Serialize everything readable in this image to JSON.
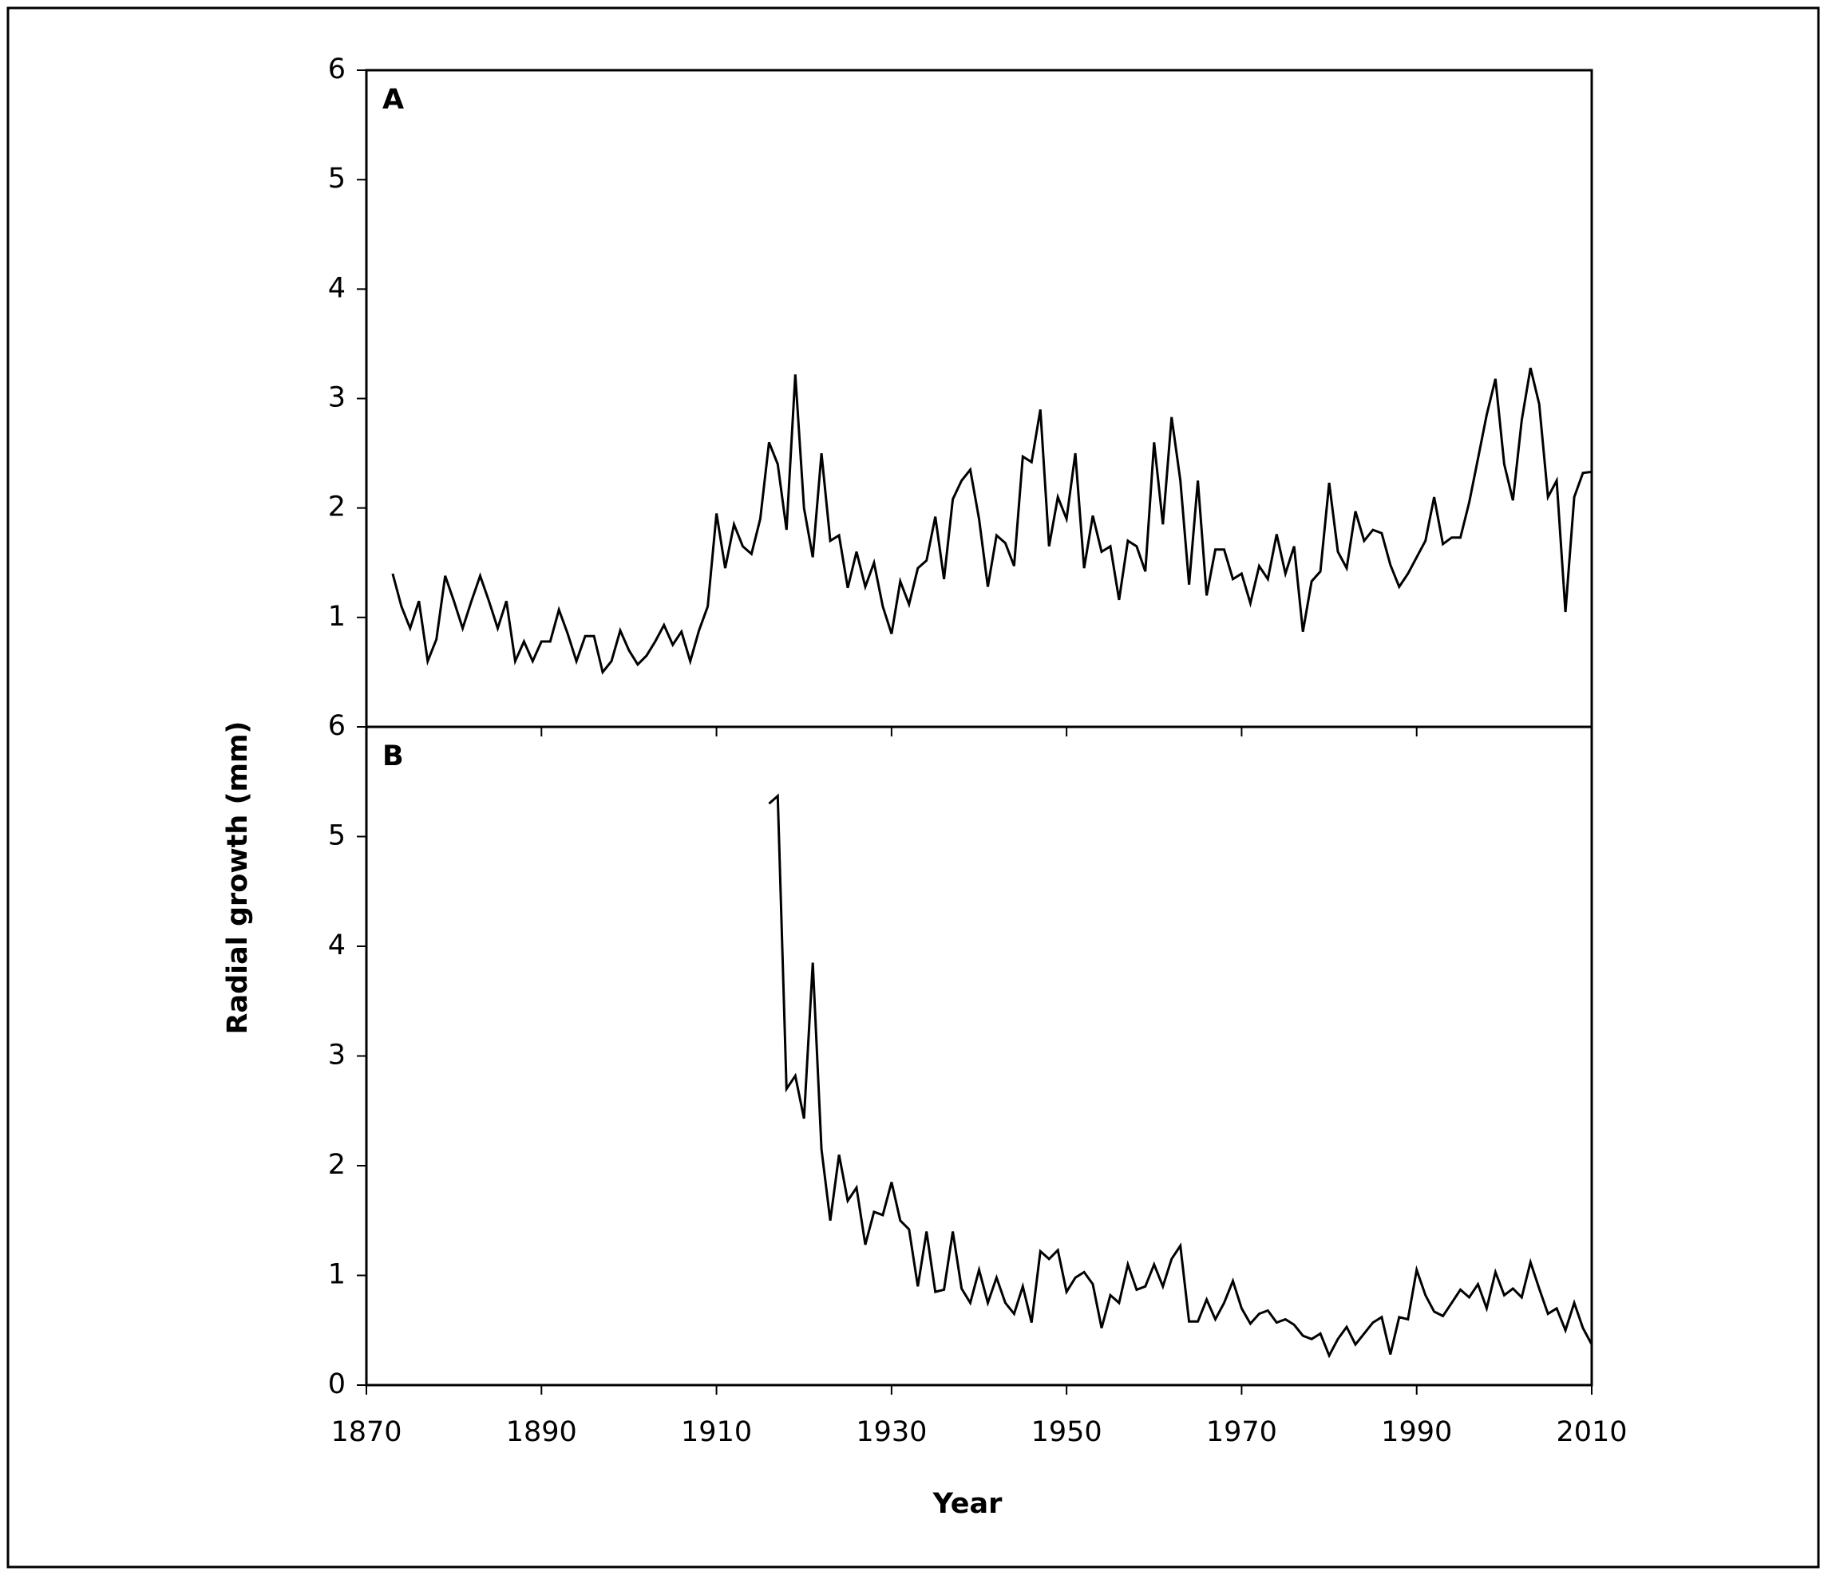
{
  "y_label": "Radial growth (mm)",
  "x_label": "Year",
  "chart_data": [
    {
      "type": "line",
      "title": "A",
      "xlim": [
        1870,
        2010
      ],
      "ylim": [
        0,
        6
      ],
      "yticks": [
        1,
        2,
        3,
        4,
        5,
        6
      ],
      "x": [
        1873,
        1874,
        1875,
        1876,
        1877,
        1878,
        1879,
        1880,
        1881,
        1882,
        1883,
        1884,
        1885,
        1886,
        1887,
        1888,
        1889,
        1890,
        1891,
        1892,
        1893,
        1894,
        1895,
        1896,
        1897,
        1898,
        1899,
        1900,
        1901,
        1902,
        1903,
        1904,
        1905,
        1906,
        1907,
        1908,
        1909,
        1910,
        1911,
        1912,
        1913,
        1914,
        1915,
        1916,
        1917,
        1918,
        1919,
        1920,
        1921,
        1922,
        1923,
        1924,
        1925,
        1926,
        1927,
        1928,
        1929,
        1930,
        1931,
        1932,
        1933,
        1934,
        1935,
        1936,
        1937,
        1938,
        1939,
        1940,
        1941,
        1942,
        1943,
        1944,
        1945,
        1946,
        1947,
        1948,
        1949,
        1950,
        1951,
        1952,
        1953,
        1954,
        1955,
        1956,
        1957,
        1958,
        1959,
        1960,
        1961,
        1962,
        1963,
        1964,
        1965,
        1966,
        1967,
        1968,
        1969,
        1970,
        1971,
        1972,
        1973,
        1974,
        1975,
        1976,
        1977,
        1978,
        1979,
        1980,
        1981,
        1982,
        1983,
        1984,
        1985,
        1986,
        1987,
        1988,
        1989,
        1990,
        1991,
        1992,
        1993,
        1994,
        1995,
        1996,
        1997,
        1998,
        1999,
        2000,
        2001,
        2002,
        2003,
        2004,
        2005,
        2006,
        2007,
        2008,
        2009,
        2010
      ],
      "series": [
        {
          "color": "#000000",
          "values": [
            1.4,
            1.1,
            0.9,
            1.15,
            0.6,
            0.8,
            1.38,
            1.15,
            0.9,
            1.15,
            1.38,
            1.15,
            0.9,
            1.15,
            0.6,
            0.78,
            0.6,
            0.78,
            0.78,
            1.07,
            0.85,
            0.6,
            0.83,
            0.83,
            0.5,
            0.6,
            0.88,
            0.7,
            0.57,
            0.65,
            0.78,
            0.93,
            0.75,
            0.87,
            0.6,
            0.88,
            1.1,
            1.95,
            1.45,
            1.85,
            1.65,
            1.58,
            1.9,
            2.6,
            2.4,
            1.8,
            3.22,
            2.0,
            1.55,
            2.5,
            1.7,
            1.75,
            1.27,
            1.6,
            1.28,
            1.5,
            1.1,
            0.85,
            1.33,
            1.12,
            1.45,
            1.52,
            1.92,
            1.35,
            2.08,
            2.25,
            2.35,
            1.9,
            1.28,
            1.75,
            1.68,
            1.47,
            2.47,
            2.42,
            2.9,
            1.65,
            2.1,
            1.9,
            2.5,
            1.45,
            1.93,
            1.6,
            1.65,
            1.16,
            1.7,
            1.65,
            1.42,
            2.6,
            1.85,
            2.83,
            2.25,
            1.3,
            2.25,
            1.2,
            1.62,
            1.62,
            1.35,
            1.4,
            1.13,
            1.47,
            1.35,
            1.76,
            1.4,
            1.65,
            0.87,
            1.33,
            1.42,
            2.23,
            1.6,
            1.45,
            1.97,
            1.7,
            1.8,
            1.77,
            1.48,
            1.28,
            1.4,
            1.55,
            1.7,
            2.1,
            1.67,
            1.73,
            1.73,
            2.05,
            2.45,
            2.85,
            3.18,
            2.4,
            2.07,
            2.8,
            3.28,
            2.95,
            2.1,
            2.25,
            1.05,
            2.1,
            2.32,
            2.33
          ]
        }
      ]
    },
    {
      "type": "line",
      "title": "B",
      "xlim": [
        1870,
        2010
      ],
      "ylim": [
        0,
        6
      ],
      "yticks": [
        0,
        1,
        2,
        3,
        4,
        5,
        6
      ],
      "xticks": [
        1870,
        1890,
        1910,
        1930,
        1950,
        1970,
        1990,
        2010
      ],
      "x": [
        1916,
        1917,
        1918,
        1919,
        1920,
        1921,
        1922,
        1923,
        1924,
        1925,
        1926,
        1927,
        1928,
        1929,
        1930,
        1931,
        1932,
        1933,
        1934,
        1935,
        1936,
        1937,
        1938,
        1939,
        1940,
        1941,
        1942,
        1943,
        1944,
        1945,
        1946,
        1947,
        1948,
        1949,
        1950,
        1951,
        1952,
        1953,
        1954,
        1955,
        1956,
        1957,
        1958,
        1959,
        1960,
        1961,
        1962,
        1963,
        1964,
        1965,
        1966,
        1967,
        1968,
        1969,
        1970,
        1971,
        1972,
        1973,
        1974,
        1975,
        1976,
        1977,
        1978,
        1979,
        1980,
        1981,
        1982,
        1983,
        1984,
        1985,
        1986,
        1987,
        1988,
        1989,
        1990,
        1991,
        1992,
        1993,
        1994,
        1995,
        1996,
        1997,
        1998,
        1999,
        2000,
        2001,
        2002,
        2003,
        2004,
        2005,
        2006,
        2007,
        2008,
        2009,
        2010
      ],
      "series": [
        {
          "color": "#000000",
          "values": [
            5.3,
            5.37,
            2.7,
            2.82,
            2.43,
            3.85,
            2.15,
            1.5,
            2.1,
            1.68,
            1.8,
            1.28,
            1.58,
            1.55,
            1.85,
            1.5,
            1.42,
            0.9,
            1.4,
            0.85,
            0.87,
            1.4,
            0.88,
            0.75,
            1.05,
            0.75,
            0.98,
            0.75,
            0.65,
            0.9,
            0.57,
            1.22,
            1.15,
            1.23,
            0.85,
            0.98,
            1.03,
            0.92,
            0.52,
            0.82,
            0.75,
            1.1,
            0.87,
            0.9,
            1.1,
            0.9,
            1.15,
            1.27,
            0.58,
            0.58,
            0.78,
            0.6,
            0.75,
            0.95,
            0.7,
            0.56,
            0.65,
            0.68,
            0.57,
            0.6,
            0.55,
            0.45,
            0.42,
            0.47,
            0.27,
            0.42,
            0.53,
            0.37,
            0.47,
            0.57,
            0.62,
            0.28,
            0.62,
            0.6,
            1.05,
            0.82,
            0.67,
            0.63,
            0.75,
            0.87,
            0.8,
            0.92,
            0.7,
            1.03,
            0.82,
            0.88,
            0.8,
            1.12,
            0.88,
            0.65,
            0.7,
            0.5,
            0.75,
            0.52,
            0.37
          ]
        }
      ]
    }
  ]
}
